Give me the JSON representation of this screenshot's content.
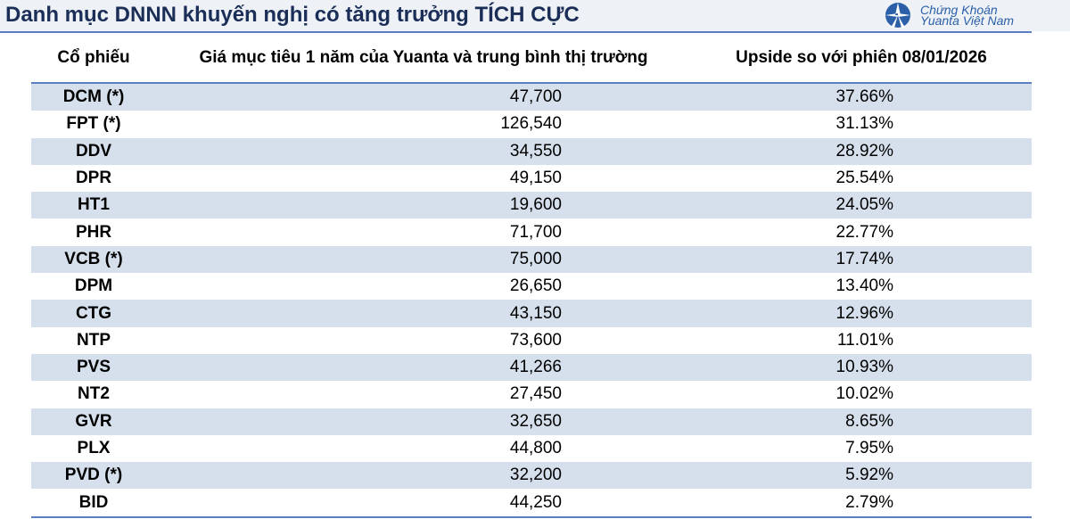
{
  "header": {
    "title": "Danh mục DNNN khuyến nghị có tăng trưởng TÍCH CỰC",
    "logo_text": [
      "Chứng Khoán",
      "Yuanta Việt Nam"
    ]
  },
  "table": {
    "columns": [
      "Cổ phiếu",
      "Giá mục tiêu 1 năm của Yuanta và trung bình thị trường",
      "Upside so với phiên 08/01/2026"
    ],
    "rows": [
      [
        "DCM (*)",
        "47,700",
        "37.66%"
      ],
      [
        "FPT (*)",
        "126,540",
        "31.13%"
      ],
      [
        "DDV",
        "34,550",
        "28.92%"
      ],
      [
        "DPR",
        "49,150",
        "25.54%"
      ],
      [
        "HT1",
        "19,600",
        "24.05%"
      ],
      [
        "PHR",
        "71,700",
        "22.77%"
      ],
      [
        "VCB (*)",
        "75,000",
        "17.74%"
      ],
      [
        "DPM",
        "26,650",
        "13.40%"
      ],
      [
        "CTG",
        "43,150",
        "12.96%"
      ],
      [
        "NTP",
        "73,600",
        "11.01%"
      ],
      [
        "PVS",
        "41,266",
        "10.93%"
      ],
      [
        "NT2",
        "27,450",
        "10.02%"
      ],
      [
        "GVR",
        "32,650",
        "8.65%"
      ],
      [
        "PLX",
        "44,800",
        "7.95%"
      ],
      [
        "PVD (*)",
        "32,200",
        "5.92%"
      ],
      [
        "BID",
        "44,250",
        "2.79%"
      ]
    ]
  },
  "colors": {
    "title": "#1b2e57",
    "row_shade": "#d6e0ec",
    "rule": "#5b7fbf"
  }
}
